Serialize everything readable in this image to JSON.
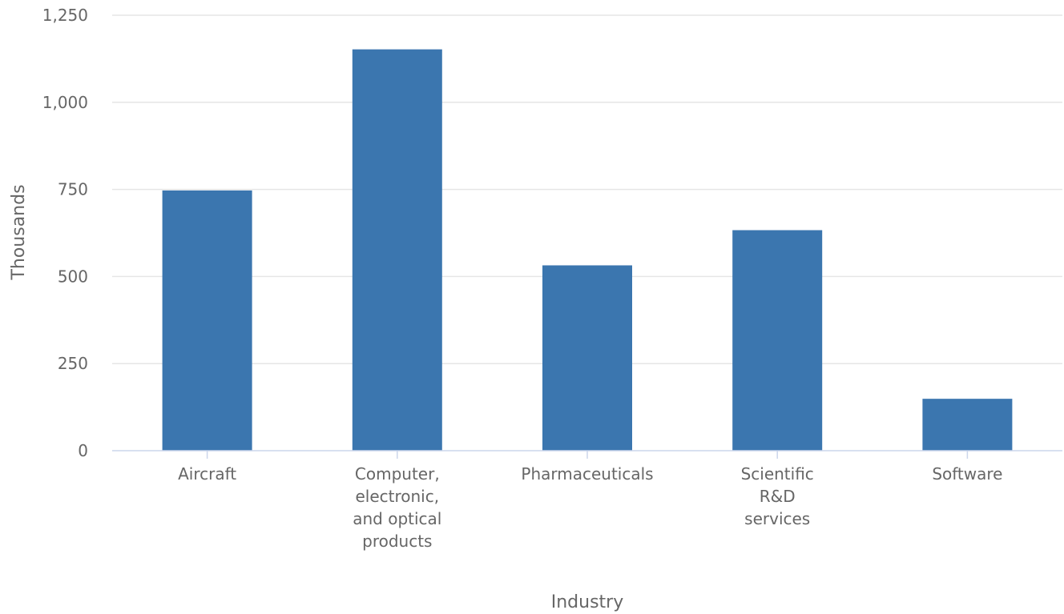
{
  "chart_data": {
    "type": "bar",
    "categories": [
      [
        "Aircraft"
      ],
      [
        "Computer,",
        "electronic,",
        "and optical",
        "products"
      ],
      [
        "Pharmaceuticals"
      ],
      [
        "Scientific",
        "R&D",
        "services"
      ],
      [
        "Software"
      ]
    ],
    "values": [
      747,
      1152,
      532,
      633,
      149
    ],
    "xlabel": "Industry",
    "ylabel": "Thousands",
    "ylim": [
      0,
      1250
    ],
    "yticks": [
      "0",
      "250",
      "500",
      "750",
      "1,000",
      "1,250"
    ],
    "ytick_values": [
      0,
      250,
      500,
      750,
      1000,
      1250
    ],
    "grid": true,
    "legend": "none",
    "bar_color": "#3b76af"
  }
}
